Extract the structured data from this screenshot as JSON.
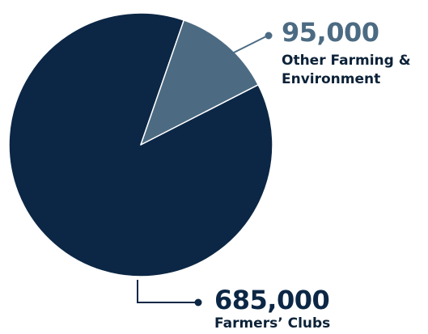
{
  "chart_data": {
    "type": "pie",
    "slices": [
      {
        "label": "Farmers’ Clubs",
        "value_label": "685,000",
        "value": 685000,
        "color": "#0c2745"
      },
      {
        "label": "Other Farming & Environment",
        "value_label": "95,000",
        "value": 95000,
        "color": "#4c6b83"
      }
    ],
    "title": "",
    "legend": "none",
    "label_style": "callout-leader-lines"
  }
}
